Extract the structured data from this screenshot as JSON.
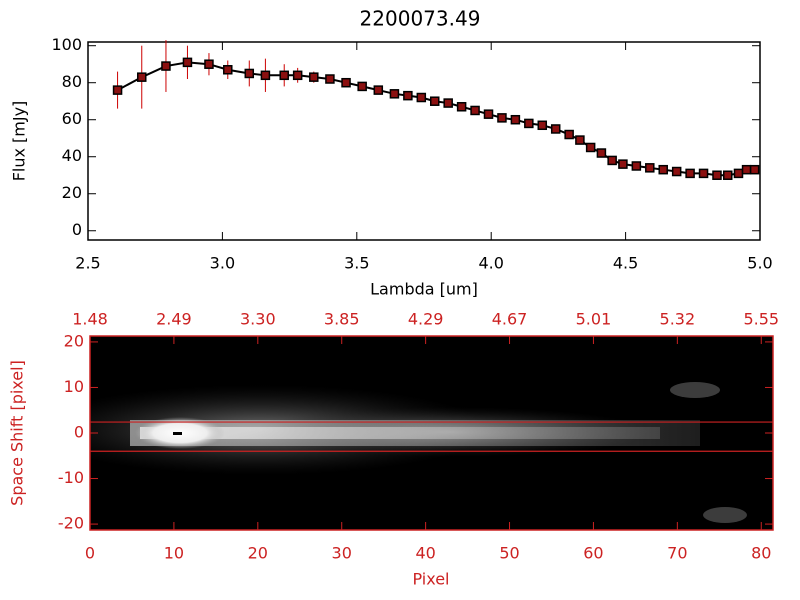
{
  "chart_data": [
    {
      "type": "line",
      "title": "2200073.49",
      "x_label": "Lambda [um]",
      "y_label": "Flux [mJy]",
      "x": [
        2.61,
        2.7,
        2.79,
        2.87,
        2.95,
        3.02,
        3.1,
        3.16,
        3.23,
        3.28,
        3.34,
        3.4,
        3.46,
        3.52,
        3.58,
        3.64,
        3.69,
        3.74,
        3.79,
        3.84,
        3.89,
        3.94,
        3.99,
        4.04,
        4.09,
        4.14,
        4.19,
        4.24,
        4.29,
        4.33,
        4.37,
        4.41,
        4.45,
        4.49,
        4.54,
        4.59,
        4.64,
        4.69,
        4.74,
        4.79,
        4.84,
        4.88,
        4.92,
        4.95,
        4.98
      ],
      "values": [
        76,
        83,
        89,
        91,
        90,
        87,
        85,
        84,
        84,
        84,
        83,
        82,
        80,
        78,
        76,
        74,
        73,
        72,
        70,
        69,
        67,
        65,
        63,
        61,
        60,
        58,
        57,
        55,
        52,
        49,
        45,
        42,
        38,
        36,
        35,
        34,
        33,
        32,
        31,
        31,
        30,
        30,
        31,
        33,
        33
      ],
      "errors": [
        10,
        17,
        14,
        9,
        6,
        5,
        7,
        9,
        6,
        4,
        3,
        2,
        2,
        1,
        1,
        1,
        1,
        1,
        1,
        1,
        1,
        1,
        1,
        1,
        1,
        1,
        1,
        1,
        1,
        1,
        1,
        1,
        1,
        1,
        1,
        1,
        1,
        1,
        1,
        1,
        1,
        1,
        2,
        2,
        2
      ],
      "color": "#000000",
      "marker_color": "#8b1010",
      "error_color": "#cc0000",
      "xlim": [
        2.5,
        5.0
      ],
      "xticks": [
        2.5,
        {
          "value": 3,
          "label": "3.0"
        },
        3.5,
        {
          "value": 4,
          "label": "4.0"
        },
        4.5,
        {
          "value": 5,
          "label": "5.0"
        }
      ],
      "ylim": [
        -5,
        102
      ],
      "yticks": [
        0,
        20,
        40,
        60,
        80,
        100
      ]
    },
    {
      "type": "image",
      "x_label": "Pixel",
      "y_label": "Space Shift [pixel]",
      "color": "#cc2222",
      "xlim": [
        0,
        81.4
      ],
      "xticks": [
        0,
        10,
        20,
        30,
        40,
        50,
        60,
        70,
        80
      ],
      "x2ticks": [
        {
          "value": 0,
          "label": "1.48"
        },
        {
          "value": 10,
          "label": "2.49"
        },
        {
          "value": 20,
          "label": "3.30"
        },
        {
          "value": 30,
          "label": "3.85"
        },
        {
          "value": 40,
          "label": "4.29"
        },
        {
          "value": 50,
          "label": "4.67"
        },
        {
          "value": 60,
          "label": "5.01"
        },
        {
          "value": 70,
          "label": "5.32"
        },
        {
          "value": 80,
          "label": "5.55"
        }
      ],
      "ylim": [
        -21.3,
        21.3
      ],
      "yticks": [
        -20,
        -10,
        0,
        10,
        20
      ],
      "aperture": [
        -4,
        2.4
      ]
    }
  ]
}
